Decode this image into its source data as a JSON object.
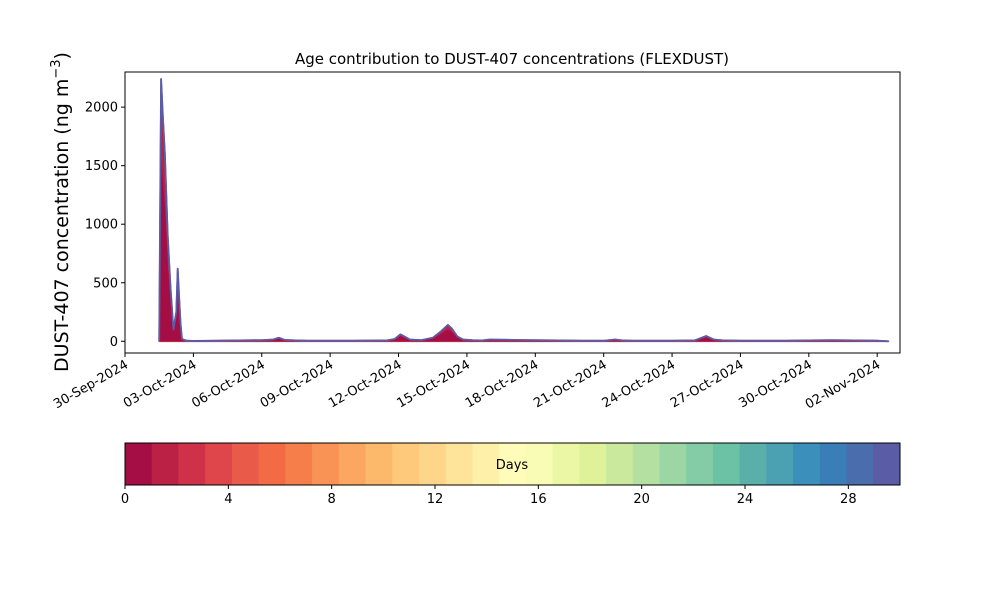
{
  "chart_data": {
    "type": "area",
    "title": "Age contribution to DUST-407 concentrations (FLEXDUST)",
    "ylabel": "DUST-407 concentration (ng m",
    "ylabel_sup": "−3",
    "ylabel_close": ")",
    "xlabel": "",
    "stacked": true,
    "xlim": [
      "2024-09-30",
      "2024-11-03"
    ],
    "ylim": [
      -100,
      2300
    ],
    "x_ticks": [
      "30-Sep-2024",
      "03-Oct-2024",
      "06-Oct-2024",
      "09-Oct-2024",
      "12-Oct-2024",
      "15-Oct-2024",
      "18-Oct-2024",
      "21-Oct-2024",
      "24-Oct-2024",
      "27-Oct-2024",
      "30-Oct-2024",
      "02-Nov-2024"
    ],
    "y_ticks": [
      0,
      500,
      1000,
      1500,
      2000
    ],
    "grid": false,
    "total_series": {
      "name": "",
      "x": [
        "2024-10-01T12:00",
        "2024-10-01T14:00",
        "2024-10-01T16:00",
        "2024-10-01T18:00",
        "2024-10-01T21:00",
        "2024-10-02T00:00",
        "2024-10-02T03:00",
        "2024-10-02T06:00",
        "2024-10-02T07:30",
        "2024-10-02T09:00",
        "2024-10-02T10:30",
        "2024-10-02T12:00",
        "2024-10-02T15:00",
        "2024-10-02T18:00",
        "2024-10-03T00:00",
        "2024-10-04T00:00",
        "2024-10-05T00:00",
        "2024-10-06T00:00",
        "2024-10-06T12:00",
        "2024-10-06T18:00",
        "2024-10-07T00:00",
        "2024-10-07T12:00",
        "2024-10-08T00:00",
        "2024-10-10T00:00",
        "2024-10-11T12:00",
        "2024-10-11T20:00",
        "2024-10-12T02:00",
        "2024-10-12T12:00",
        "2024-10-13T00:00",
        "2024-10-13T12:00",
        "2024-10-13T20:00",
        "2024-10-14T04:00",
        "2024-10-14T08:00",
        "2024-10-14T14:00",
        "2024-10-14T20:00",
        "2024-10-15T06:00",
        "2024-10-15T16:00",
        "2024-10-16T00:00",
        "2024-10-17T00:00",
        "2024-10-18T00:00",
        "2024-10-19T00:00",
        "2024-10-20T00:00",
        "2024-10-21T00:00",
        "2024-10-21T12:00",
        "2024-10-21T20:00",
        "2024-10-22T06:00",
        "2024-10-23T00:00",
        "2024-10-24T00:00",
        "2024-10-25T00:00",
        "2024-10-25T12:00",
        "2024-10-25T20:00",
        "2024-10-26T06:00",
        "2024-10-27T00:00",
        "2024-10-28T00:00",
        "2024-10-29T00:00",
        "2024-10-30T00:00",
        "2024-10-31T00:00",
        "2024-11-01T00:00",
        "2024-11-02T00:00",
        "2024-11-02T12:00"
      ],
      "y": [
        0,
        2240,
        1900,
        1600,
        900,
        450,
        100,
        250,
        620,
        380,
        150,
        20,
        10,
        5,
        3,
        5,
        8,
        10,
        15,
        30,
        12,
        8,
        5,
        5,
        8,
        20,
        60,
        15,
        10,
        30,
        80,
        140,
        110,
        40,
        15,
        10,
        8,
        15,
        12,
        10,
        8,
        5,
        5,
        15,
        8,
        5,
        5,
        5,
        8,
        45,
        15,
        8,
        5,
        5,
        5,
        8,
        10,
        8,
        5,
        0
      ]
    },
    "age_colorbar": {
      "label": "Days",
      "range": [
        0,
        30
      ],
      "ticks": [
        0,
        4,
        8,
        12,
        16,
        20,
        24,
        28
      ],
      "colors": [
        "#a50e45",
        "#bb2144",
        "#cf3148",
        "#de464c",
        "#e95a49",
        "#f26b44",
        "#f67e4a",
        "#f99255",
        "#fca761",
        "#fdb96b",
        "#fec97a",
        "#fed68a",
        "#fee39a",
        "#fef0a8",
        "#fffbb8",
        "#f8fcb4",
        "#ecf7a6",
        "#dff299",
        "#cae99d",
        "#b4e0a2",
        "#9cd6a4",
        "#83cca5",
        "#6cc2a5",
        "#5ab0a9",
        "#4ba0b2",
        "#3b8fbb",
        "#3a7eb7",
        "#4a6dae",
        "#5b5ca6"
      ]
    }
  }
}
